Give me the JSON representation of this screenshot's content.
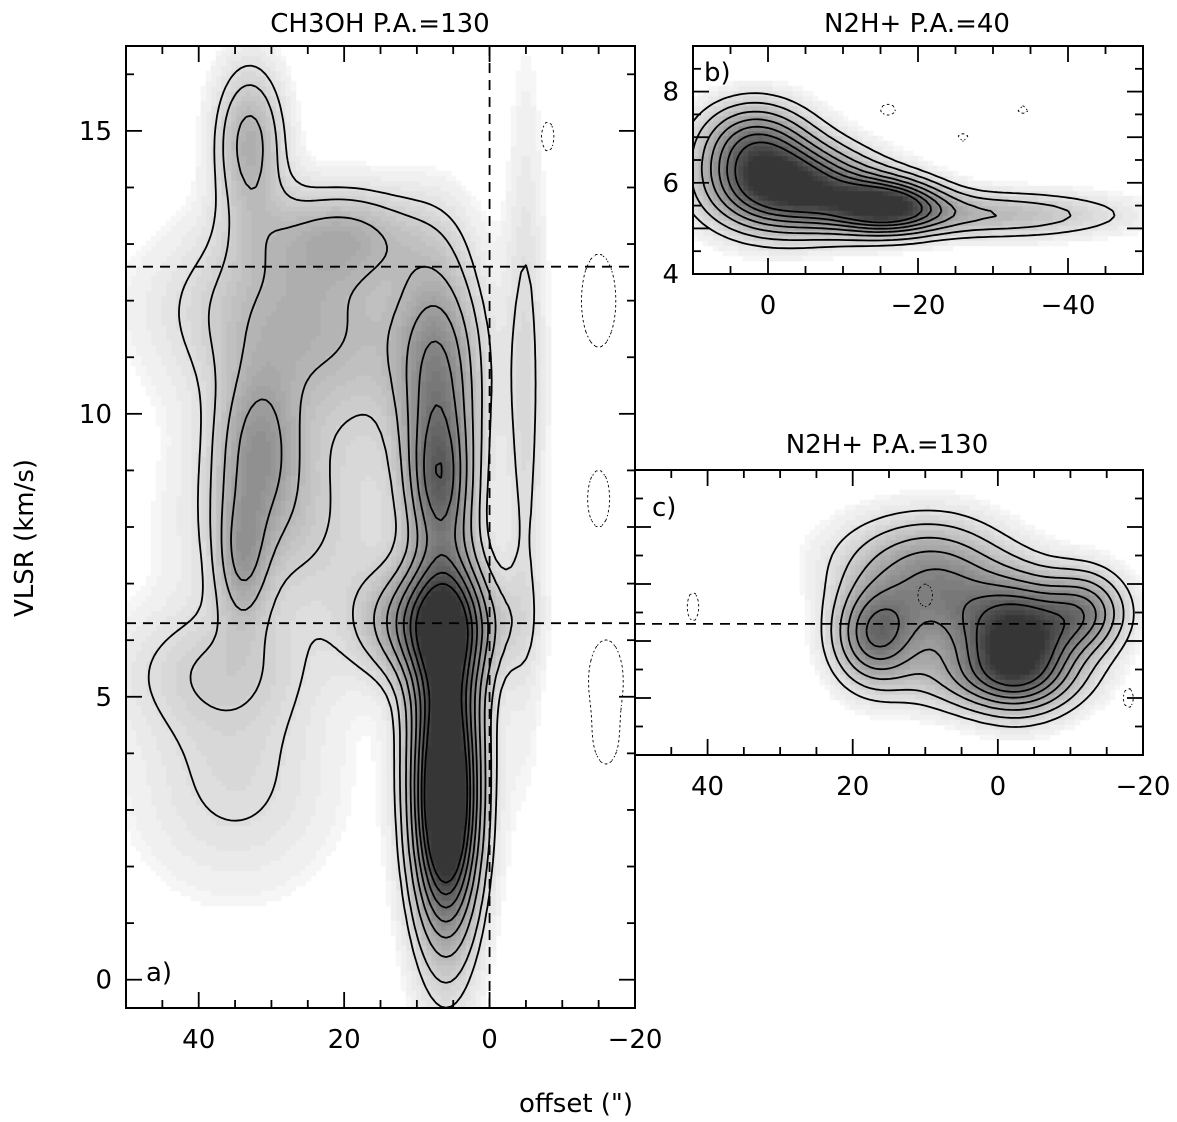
{
  "figure": {
    "xlabel": "offset (\")",
    "ylabel": "VLSR (km/s)"
  },
  "colors": {
    "line": "#000000",
    "shade_max": "#3a3a3a",
    "background": "#ffffff"
  },
  "chart_data": [
    {
      "type": "heatmap",
      "panel_label": "a)",
      "title": "CH3OH   P.A.=130",
      "xlabel": "offset (\")",
      "ylabel": "VLSR (km/s)",
      "xlim": [
        50,
        -20
      ],
      "ylim": [
        -0.5,
        16.5
      ],
      "x_ticks": [
        40,
        20,
        0,
        -20
      ],
      "y_ticks": [
        0,
        5,
        10,
        15
      ],
      "x_tick_labels": [
        "40",
        "20",
        "0",
        "−20"
      ],
      "y_tick_labels": [
        "0",
        "5",
        "10",
        "15"
      ],
      "reference_lines": {
        "vertical_x": [
          0
        ],
        "horizontal_y": [
          12.6,
          6.3
        ]
      },
      "blobs": [
        {
          "x": 6,
          "y": 4.2,
          "sx": 3.5,
          "sy": 2.4,
          "a": 1.0
        },
        {
          "x": 6,
          "y": 2.8,
          "sx": 2.8,
          "sy": 1.2,
          "a": 0.55
        },
        {
          "x": 8,
          "y": 6.3,
          "sx": 6.5,
          "sy": 0.7,
          "a": 0.6
        },
        {
          "x": 7,
          "y": 10.5,
          "sx": 4.0,
          "sy": 1.6,
          "a": 0.5
        },
        {
          "x": 7,
          "y": 8.8,
          "sx": 3.0,
          "sy": 0.8,
          "a": 0.35
        },
        {
          "x": 33,
          "y": 14.8,
          "sx": 3.5,
          "sy": 1.0,
          "a": 0.4
        },
        {
          "x": 32,
          "y": 9.4,
          "sx": 4.0,
          "sy": 1.0,
          "a": 0.35
        },
        {
          "x": 34,
          "y": 7.4,
          "sx": 2.5,
          "sy": 0.8,
          "a": 0.3
        },
        {
          "x": 20,
          "y": 13.2,
          "sx": 8,
          "sy": 0.6,
          "a": 0.3
        },
        {
          "x": 22,
          "y": 11.0,
          "sx": 12,
          "sy": 1.3,
          "a": 0.25
        },
        {
          "x": 28,
          "y": 8.0,
          "sx": 10,
          "sy": 1.2,
          "a": 0.25
        },
        {
          "x": 35,
          "y": 3.5,
          "sx": 10,
          "sy": 1.4,
          "a": 0.18
        },
        {
          "x": 38,
          "y": 5.5,
          "sx": 10,
          "sy": 0.8,
          "a": 0.18
        },
        {
          "x": -5,
          "y": 10.0,
          "sx": 2.0,
          "sy": 4.0,
          "a": 0.18
        },
        {
          "x": 30,
          "y": 12.0,
          "sx": 12,
          "sy": 1.0,
          "a": 0.2
        }
      ],
      "contour_levels": [
        0.16,
        0.24,
        0.36,
        0.48,
        0.6,
        0.72,
        0.84,
        0.95
      ],
      "negative_blobs": [
        {
          "x": -15,
          "y": 12.0,
          "sx": 2.0,
          "sy": 0.7,
          "a": 0.3
        },
        {
          "x": -15,
          "y": 8.5,
          "sx": 1.5,
          "sy": 0.5,
          "a": 0.25
        },
        {
          "x": -16,
          "y": 5.3,
          "sx": 2.0,
          "sy": 0.6,
          "a": 0.3
        },
        {
          "x": -16,
          "y": 4.2,
          "sx": 1.5,
          "sy": 0.4,
          "a": 0.22
        },
        {
          "x": -8,
          "y": 14.9,
          "sx": 1.0,
          "sy": 0.3,
          "a": 0.22
        }
      ]
    },
    {
      "type": "heatmap",
      "panel_label": "b)",
      "title": "N2H+   P.A.=40",
      "xlim": [
        10,
        -50
      ],
      "ylim": [
        4,
        9
      ],
      "x_ticks": [
        0,
        -20,
        -40
      ],
      "y_ticks": [
        4,
        6,
        8
      ],
      "x_tick_labels": [
        "0",
        "−20",
        "−40"
      ],
      "y_tick_labels": [
        "4",
        "6",
        "8"
      ],
      "reference_lines": {
        "vertical_x": [],
        "horizontal_y": []
      },
      "blobs": [
        {
          "x": 0,
          "y": 6.0,
          "sx": 6,
          "sy": 0.7,
          "a": 0.85
        },
        {
          "x": -16,
          "y": 5.5,
          "sx": 5,
          "sy": 0.4,
          "a": 0.85
        },
        {
          "x": -8,
          "y": 5.8,
          "sx": 6,
          "sy": 0.6,
          "a": 0.5
        },
        {
          "x": -30,
          "y": 5.3,
          "sx": 12,
          "sy": 0.35,
          "a": 0.35
        },
        {
          "x": 2,
          "y": 7.0,
          "sx": 5,
          "sy": 0.6,
          "a": 0.45
        }
      ],
      "contour_levels": [
        0.14,
        0.24,
        0.36,
        0.48,
        0.6,
        0.72,
        0.84
      ],
      "negative_blobs": [
        {
          "x": -16,
          "y": 7.6,
          "sx": 1.0,
          "sy": 0.12,
          "a": 0.25
        },
        {
          "x": -26,
          "y": 7.0,
          "sx": 0.8,
          "sy": 0.1,
          "a": 0.22
        },
        {
          "x": -34,
          "y": 7.6,
          "sx": 0.8,
          "sy": 0.1,
          "a": 0.22
        }
      ]
    },
    {
      "type": "heatmap",
      "panel_label": "c)",
      "title": "N2H+   P.A.=130",
      "xlim": [
        50,
        -20
      ],
      "ylim": [
        4,
        9
      ],
      "x_ticks": [
        40,
        20,
        0,
        -20
      ],
      "y_ticks": [
        5,
        6,
        7,
        8
      ],
      "x_tick_labels": [
        "40",
        "20",
        "0",
        "−20"
      ],
      "y_tick_labels": [],
      "reference_lines": {
        "vertical_x": [],
        "horizontal_y": [
          6.3
        ]
      },
      "blobs": [
        {
          "x": -3,
          "y": 6.0,
          "sx": 5,
          "sy": 0.7,
          "a": 1.0
        },
        {
          "x": 17,
          "y": 6.1,
          "sx": 4,
          "sy": 0.6,
          "a": 0.65
        },
        {
          "x": 7,
          "y": 6.6,
          "sx": 6,
          "sy": 0.8,
          "a": 0.45
        },
        {
          "x": -12,
          "y": 6.5,
          "sx": 4,
          "sy": 0.5,
          "a": 0.55
        },
        {
          "x": 12,
          "y": 7.4,
          "sx": 8,
          "sy": 0.6,
          "a": 0.3
        },
        {
          "x": 0,
          "y": 5.3,
          "sx": 8,
          "sy": 0.4,
          "a": 0.3
        }
      ],
      "contour_levels": [
        0.14,
        0.24,
        0.36,
        0.48,
        0.6,
        0.72,
        0.84
      ],
      "negative_blobs": [
        {
          "x": 42,
          "y": 6.6,
          "sx": 0.8,
          "sy": 0.25,
          "a": 0.25
        },
        {
          "x": 10,
          "y": 6.8,
          "sx": 1.0,
          "sy": 0.2,
          "a": 0.25
        },
        {
          "x": -18,
          "y": 5.0,
          "sx": 0.8,
          "sy": 0.2,
          "a": 0.22
        }
      ]
    }
  ]
}
